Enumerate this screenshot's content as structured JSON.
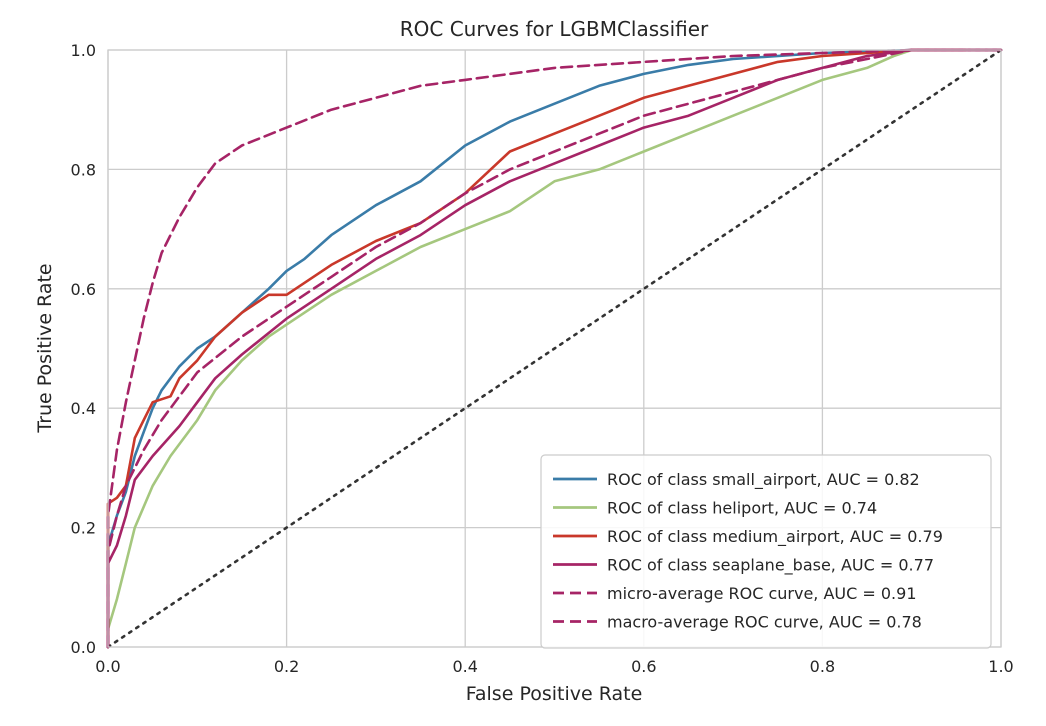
{
  "chart_data": {
    "type": "line",
    "title": "ROC Curves for LGBMClassifier",
    "xlabel": "False Positive Rate",
    "ylabel": "True Positive Rate",
    "xlim": [
      0,
      1
    ],
    "ylim": [
      0,
      1
    ],
    "x_ticks": [
      "0.0",
      "0.2",
      "0.4",
      "0.6",
      "0.8",
      "1.0"
    ],
    "y_ticks": [
      "0.0",
      "0.2",
      "0.4",
      "0.6",
      "0.8",
      "1.0"
    ],
    "grid": true,
    "legend_position": "lower-right",
    "series": [
      {
        "name": "ROC of class small_airport, AUC = 0.82",
        "color": "#3a7ca8",
        "style": "solid",
        "points": [
          [
            0,
            0
          ],
          [
            0,
            0.17
          ],
          [
            0.01,
            0.22
          ],
          [
            0.02,
            0.26
          ],
          [
            0.03,
            0.32
          ],
          [
            0.04,
            0.36
          ],
          [
            0.05,
            0.4
          ],
          [
            0.06,
            0.43
          ],
          [
            0.08,
            0.47
          ],
          [
            0.1,
            0.5
          ],
          [
            0.12,
            0.52
          ],
          [
            0.15,
            0.56
          ],
          [
            0.18,
            0.6
          ],
          [
            0.2,
            0.63
          ],
          [
            0.22,
            0.65
          ],
          [
            0.25,
            0.69
          ],
          [
            0.3,
            0.74
          ],
          [
            0.35,
            0.78
          ],
          [
            0.4,
            0.84
          ],
          [
            0.45,
            0.88
          ],
          [
            0.5,
            0.91
          ],
          [
            0.55,
            0.94
          ],
          [
            0.6,
            0.96
          ],
          [
            0.65,
            0.975
          ],
          [
            0.7,
            0.985
          ],
          [
            0.8,
            0.995
          ],
          [
            0.9,
            1.0
          ],
          [
            1.0,
            1.0
          ]
        ]
      },
      {
        "name": "ROC of class heliport, AUC = 0.74",
        "color": "#a5c77e",
        "style": "solid",
        "points": [
          [
            0,
            0
          ],
          [
            0,
            0.03
          ],
          [
            0.01,
            0.08
          ],
          [
            0.02,
            0.14
          ],
          [
            0.03,
            0.2
          ],
          [
            0.05,
            0.27
          ],
          [
            0.07,
            0.32
          ],
          [
            0.1,
            0.38
          ],
          [
            0.12,
            0.43
          ],
          [
            0.15,
            0.48
          ],
          [
            0.18,
            0.52
          ],
          [
            0.2,
            0.54
          ],
          [
            0.25,
            0.59
          ],
          [
            0.3,
            0.63
          ],
          [
            0.35,
            0.67
          ],
          [
            0.4,
            0.7
          ],
          [
            0.45,
            0.73
          ],
          [
            0.5,
            0.78
          ],
          [
            0.55,
            0.8
          ],
          [
            0.6,
            0.83
          ],
          [
            0.65,
            0.86
          ],
          [
            0.7,
            0.89
          ],
          [
            0.75,
            0.92
          ],
          [
            0.8,
            0.95
          ],
          [
            0.85,
            0.97
          ],
          [
            0.88,
            0.99
          ],
          [
            0.9,
            1.0
          ],
          [
            1.0,
            1.0
          ]
        ]
      },
      {
        "name": "ROC of class medium_airport, AUC = 0.79",
        "color": "#c9382a",
        "style": "solid",
        "points": [
          [
            0,
            0
          ],
          [
            0,
            0.24
          ],
          [
            0.01,
            0.25
          ],
          [
            0.02,
            0.27
          ],
          [
            0.03,
            0.35
          ],
          [
            0.04,
            0.38
          ],
          [
            0.05,
            0.41
          ],
          [
            0.07,
            0.42
          ],
          [
            0.08,
            0.45
          ],
          [
            0.1,
            0.48
          ],
          [
            0.12,
            0.52
          ],
          [
            0.15,
            0.56
          ],
          [
            0.18,
            0.59
          ],
          [
            0.2,
            0.59
          ],
          [
            0.25,
            0.64
          ],
          [
            0.3,
            0.68
          ],
          [
            0.35,
            0.71
          ],
          [
            0.4,
            0.76
          ],
          [
            0.45,
            0.83
          ],
          [
            0.5,
            0.86
          ],
          [
            0.55,
            0.89
          ],
          [
            0.6,
            0.92
          ],
          [
            0.65,
            0.94
          ],
          [
            0.7,
            0.96
          ],
          [
            0.75,
            0.98
          ],
          [
            0.8,
            0.99
          ],
          [
            0.9,
            1.0
          ],
          [
            0.96,
            1.0
          ]
        ]
      },
      {
        "name": "ROC of class seaplane_base, AUC = 0.77",
        "color": "#a62466",
        "style": "solid",
        "points": [
          [
            0,
            0
          ],
          [
            0,
            0.14
          ],
          [
            0.01,
            0.17
          ],
          [
            0.02,
            0.22
          ],
          [
            0.03,
            0.28
          ],
          [
            0.05,
            0.32
          ],
          [
            0.08,
            0.37
          ],
          [
            0.1,
            0.41
          ],
          [
            0.12,
            0.45
          ],
          [
            0.15,
            0.49
          ],
          [
            0.2,
            0.55
          ],
          [
            0.25,
            0.6
          ],
          [
            0.3,
            0.65
          ],
          [
            0.35,
            0.69
          ],
          [
            0.4,
            0.74
          ],
          [
            0.45,
            0.78
          ],
          [
            0.5,
            0.81
          ],
          [
            0.55,
            0.84
          ],
          [
            0.6,
            0.87
          ],
          [
            0.65,
            0.89
          ],
          [
            0.7,
            0.92
          ],
          [
            0.75,
            0.95
          ],
          [
            0.8,
            0.97
          ],
          [
            0.85,
            0.99
          ],
          [
            0.9,
            1.0
          ],
          [
            1.0,
            1.0
          ]
        ]
      },
      {
        "name": "micro-average ROC curve, AUC = 0.91",
        "color": "#a62466",
        "style": "dashed",
        "points": [
          [
            0,
            0
          ],
          [
            0,
            0.22
          ],
          [
            0.01,
            0.33
          ],
          [
            0.02,
            0.41
          ],
          [
            0.03,
            0.48
          ],
          [
            0.04,
            0.55
          ],
          [
            0.05,
            0.61
          ],
          [
            0.06,
            0.66
          ],
          [
            0.08,
            0.72
          ],
          [
            0.1,
            0.77
          ],
          [
            0.12,
            0.81
          ],
          [
            0.15,
            0.84
          ],
          [
            0.2,
            0.87
          ],
          [
            0.25,
            0.9
          ],
          [
            0.3,
            0.92
          ],
          [
            0.35,
            0.94
          ],
          [
            0.4,
            0.95
          ],
          [
            0.5,
            0.97
          ],
          [
            0.6,
            0.98
          ],
          [
            0.7,
            0.99
          ],
          [
            0.8,
            0.995
          ],
          [
            0.9,
            1.0
          ],
          [
            1.0,
            1.0
          ]
        ]
      },
      {
        "name": "macro-average ROC curve, AUC = 0.78",
        "color": "#a62466",
        "style": "dashed",
        "points": [
          [
            0,
            0
          ],
          [
            0,
            0.16
          ],
          [
            0.01,
            0.22
          ],
          [
            0.02,
            0.27
          ],
          [
            0.04,
            0.33
          ],
          [
            0.06,
            0.38
          ],
          [
            0.08,
            0.42
          ],
          [
            0.1,
            0.46
          ],
          [
            0.15,
            0.52
          ],
          [
            0.2,
            0.57
          ],
          [
            0.25,
            0.62
          ],
          [
            0.3,
            0.67
          ],
          [
            0.35,
            0.71
          ],
          [
            0.4,
            0.76
          ],
          [
            0.45,
            0.8
          ],
          [
            0.5,
            0.83
          ],
          [
            0.55,
            0.86
          ],
          [
            0.6,
            0.89
          ],
          [
            0.65,
            0.91
          ],
          [
            0.7,
            0.93
          ],
          [
            0.75,
            0.95
          ],
          [
            0.8,
            0.97
          ],
          [
            0.85,
            0.985
          ],
          [
            0.9,
            1.0
          ],
          [
            1.0,
            1.0
          ]
        ]
      }
    ],
    "reference_line": {
      "style": "dotted",
      "color": "#333333",
      "points": [
        [
          0,
          0
        ],
        [
          1,
          1
        ]
      ]
    }
  }
}
